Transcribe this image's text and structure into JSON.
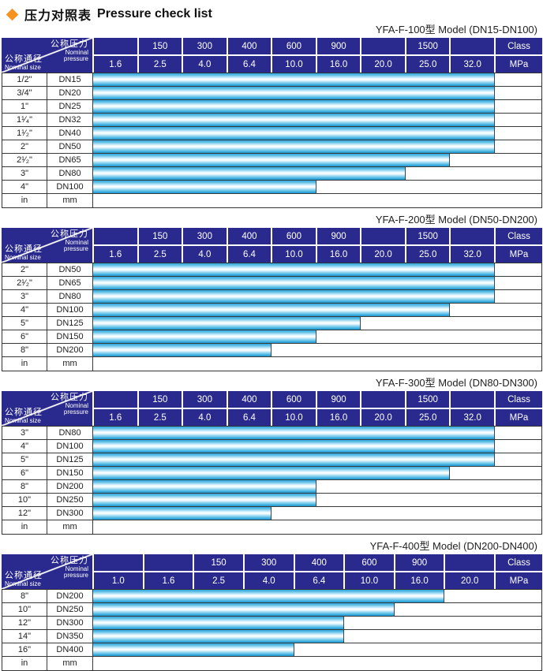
{
  "title": {
    "zh": "压力对照表",
    "en": "Pressure check list"
  },
  "legend": {
    "pressure_zh": "公称压力",
    "pressure_en1": "Nominal",
    "pressure_en2": "pressure",
    "size_zh": "公称通径",
    "size_en": "Nominal size"
  },
  "colors": {
    "header_bg": "#2A2A8E",
    "header_text": "#FFFFFF",
    "bar_cyan": "#2DA7DC",
    "diamond_orange": "#F6921E",
    "grid_line": "#3A3A3A"
  },
  "tables": [
    {
      "id": "yfa-f-100",
      "caption": "YFA-F-100型  Model (DN15-DN100)",
      "class_row": [
        "",
        "150",
        "300",
        "400",
        "600",
        "900",
        "",
        "1500",
        ""
      ],
      "class_unit": "Class",
      "mpa_row": [
        "1.6",
        "2.5",
        "4.0",
        "6.4",
        "10.0",
        "16.0",
        "20.0",
        "25.0",
        "32.0"
      ],
      "mpa_unit": "MPa",
      "rows": [
        {
          "size": "1/2\"",
          "dn": "DN15",
          "bar": 9
        },
        {
          "size": "3/4\"",
          "dn": "DN20",
          "bar": 9
        },
        {
          "size": "1\"",
          "dn": "DN25",
          "bar": 9
        },
        {
          "size": "1¹⁄₄\"",
          "dn": "DN32",
          "bar": 9
        },
        {
          "size": "1¹⁄₂\"",
          "dn": "DN40",
          "bar": 9
        },
        {
          "size": "2\"",
          "dn": "DN50",
          "bar": 9
        },
        {
          "size": "2¹⁄₂\"",
          "dn": "DN65",
          "bar": 8
        },
        {
          "size": "3\"",
          "dn": "DN80",
          "bar": 7
        },
        {
          "size": "4\"",
          "dn": "DN100",
          "bar": 5
        }
      ],
      "footer": {
        "size": "in",
        "dn": "mm"
      }
    },
    {
      "id": "yfa-f-200",
      "caption": "YFA-F-200型  Model (DN50-DN200)",
      "class_row": [
        "",
        "150",
        "300",
        "400",
        "600",
        "900",
        "",
        "1500",
        ""
      ],
      "class_unit": "Class",
      "mpa_row": [
        "1.6",
        "2.5",
        "4.0",
        "6.4",
        "10.0",
        "16.0",
        "20.0",
        "25.0",
        "32.0"
      ],
      "mpa_unit": "MPa",
      "rows": [
        {
          "size": "2\"",
          "dn": "DN50",
          "bar": 9
        },
        {
          "size": "2¹⁄₂\"",
          "dn": "DN65",
          "bar": 9
        },
        {
          "size": "3\"",
          "dn": "DN80",
          "bar": 9
        },
        {
          "size": "4\"",
          "dn": "DN100",
          "bar": 8
        },
        {
          "size": "5\"",
          "dn": "DN125",
          "bar": 6
        },
        {
          "size": "6\"",
          "dn": "DN150",
          "bar": 5
        },
        {
          "size": "8\"",
          "dn": "DN200",
          "bar": 4
        }
      ],
      "footer": {
        "size": "in",
        "dn": "mm"
      }
    },
    {
      "id": "yfa-f-300",
      "caption": "YFA-F-300型  Model (DN80-DN300)",
      "class_row": [
        "",
        "150",
        "300",
        "400",
        "600",
        "900",
        "",
        "1500",
        ""
      ],
      "class_unit": "Class",
      "mpa_row": [
        "1.6",
        "2.5",
        "4.0",
        "6.4",
        "10.0",
        "16.0",
        "20.0",
        "25.0",
        "32.0"
      ],
      "mpa_unit": "MPa",
      "rows": [
        {
          "size": "3\"",
          "dn": "DN80",
          "bar": 9
        },
        {
          "size": "4\"",
          "dn": "DN100",
          "bar": 9
        },
        {
          "size": "5\"",
          "dn": "DN125",
          "bar": 9
        },
        {
          "size": "6\"",
          "dn": "DN150",
          "bar": 8
        },
        {
          "size": "8\"",
          "dn": "DN200",
          "bar": 5
        },
        {
          "size": "10\"",
          "dn": "DN250",
          "bar": 5
        },
        {
          "size": "12\"",
          "dn": "DN300",
          "bar": 4
        }
      ],
      "footer": {
        "size": "in",
        "dn": "mm"
      }
    },
    {
      "id": "yfa-f-400",
      "caption": "YFA-F-400型  Model (DN200-DN400)",
      "class_row": [
        "",
        "",
        "150",
        "300",
        "400",
        "600",
        "900",
        ""
      ],
      "class_unit": "Class",
      "mpa_row": [
        "1.0",
        "1.6",
        "2.5",
        "4.0",
        "6.4",
        "10.0",
        "16.0",
        "20.0"
      ],
      "mpa_unit": "MPa",
      "rows": [
        {
          "size": "8\"",
          "dn": "DN200",
          "bar": 7
        },
        {
          "size": "10\"",
          "dn": "DN250",
          "bar": 6
        },
        {
          "size": "12\"",
          "dn": "DN300",
          "bar": 5
        },
        {
          "size": "14\"",
          "dn": "DN350",
          "bar": 5
        },
        {
          "size": "16\"",
          "dn": "DN400",
          "bar": 4
        }
      ],
      "footer": {
        "size": "in",
        "dn": "mm"
      }
    }
  ]
}
